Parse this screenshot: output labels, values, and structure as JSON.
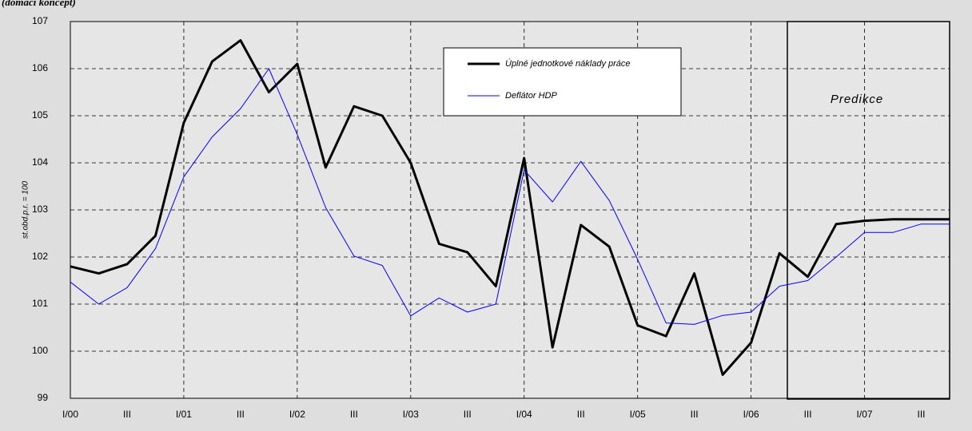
{
  "chart_data": {
    "type": "line",
    "subtitle": "(domácí koncept)",
    "y_label": "st.obd.p.r. = 100",
    "annotation": "Predikce",
    "categories": [
      "I/00",
      null,
      "III",
      null,
      "I/01",
      null,
      "III",
      null,
      "I/02",
      null,
      "III",
      null,
      "I/03",
      null,
      "III",
      null,
      "I/04",
      null,
      "III",
      null,
      "I/05",
      null,
      "III",
      null,
      "I/06",
      null,
      "III",
      null,
      "I/07",
      null,
      "III",
      null
    ],
    "series": [
      {
        "name": "Úplné jednotkové náklady práce",
        "color": "#000000",
        "values": [
          101.8,
          101.65,
          101.85,
          102.45,
          104.85,
          106.15,
          106.6,
          105.5,
          106.1,
          103.9,
          105.2,
          105.0,
          104.0,
          102.28,
          102.1,
          101.38,
          104.1,
          100.08,
          102.68,
          102.22,
          100.55,
          100.32,
          101.65,
          99.5,
          100.18,
          102.08,
          101.58,
          102.7,
          102.77,
          102.8,
          102.8,
          102.8
        ]
      },
      {
        "name": "Deflátor HDP",
        "color": "#0000ff",
        "values": [
          101.47,
          101.0,
          101.35,
          102.18,
          103.7,
          104.55,
          105.15,
          106.0,
          104.6,
          103.05,
          102.02,
          101.82,
          100.75,
          101.13,
          100.83,
          101.0,
          103.85,
          103.17,
          104.03,
          103.2,
          101.95,
          100.6,
          100.57,
          100.76,
          100.83,
          101.38,
          101.5,
          102.0,
          102.52,
          102.52,
          102.7,
          102.7
        ]
      }
    ],
    "ylim": [
      99,
      107
    ],
    "yticks": [
      99,
      100,
      101,
      102,
      103,
      104,
      105,
      106,
      107
    ],
    "grid": true
  }
}
